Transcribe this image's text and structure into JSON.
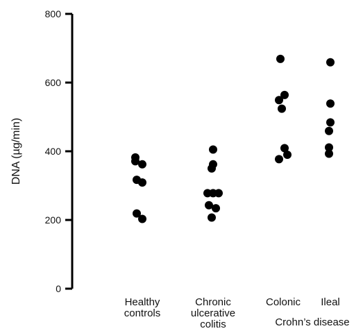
{
  "chart_data": {
    "type": "scatter",
    "ylabel": "DNA (µg/min)",
    "ylim": [
      0,
      800
    ],
    "yticks": [
      "0",
      "200",
      "400",
      "600",
      "800"
    ],
    "group_label": "Crohn’s disease",
    "marker_color": "#000000",
    "categories": [
      {
        "label_lines": [
          "Healthy",
          "controls"
        ],
        "values": [
          382,
          371,
          362,
          317,
          309,
          219,
          203
        ]
      },
      {
        "label_lines": [
          "Chronic",
          "ulcerative",
          "colitis"
        ],
        "values": [
          405,
          362,
          350,
          278,
          278,
          278,
          243,
          234,
          207
        ]
      },
      {
        "label_lines": [
          "Colonic"
        ],
        "values": [
          669,
          564,
          549,
          524,
          409,
          390,
          377
        ]
      },
      {
        "label_lines": [
          "Ileal"
        ],
        "values": [
          659,
          539,
          484,
          459,
          411,
          393
        ]
      }
    ]
  }
}
